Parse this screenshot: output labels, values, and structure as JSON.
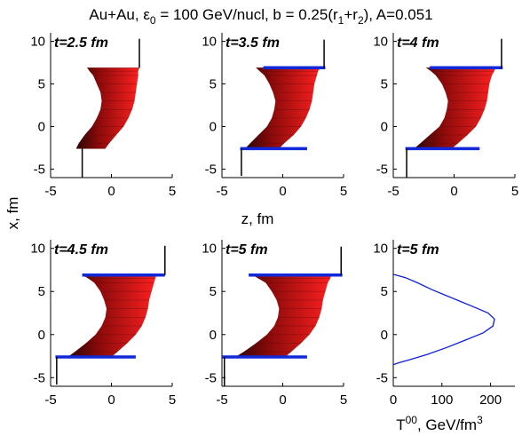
{
  "title": "Au+Au, ε0 = 100 GeV/nucl, b = 0.25(r1+r2), A=0.051",
  "title_parts": {
    "pre": "Au+Au, ε",
    "sub1": "0",
    "mid": " = 100 GeV/nucl, b = 0.25(r",
    "sub2": "1",
    "plus": "+r",
    "sub3": "2",
    "post": "), A=0.051"
  },
  "xlabel_shared": "z, fm",
  "ylabel_shared": "x, fm",
  "xlabel_t00": {
    "main": "T",
    "sup1": "00",
    "unit": ", GeV/fm",
    "sup2": "3"
  },
  "chart_data": [
    {
      "type": "area",
      "title": "t=2.5 fm",
      "xlim": [
        -5,
        5
      ],
      "ylim": [
        -6,
        11
      ],
      "xticks": [
        -5,
        0,
        5
      ],
      "yticks": [
        -5,
        0,
        5,
        10
      ],
      "band_x": [
        -2.9,
        -2.7,
        -2.2,
        -1.6,
        -1.2,
        -0.9,
        -0.8,
        -0.9,
        -1.2,
        -1.5,
        -1.8,
        -2.0
      ],
      "band_x_right": [
        -0.5,
        -0.2,
        0.4,
        1.0,
        1.4,
        1.7,
        1.9,
        2.0,
        2.1,
        2.2,
        2.2,
        2.3
      ],
      "band_y": [
        -2.6,
        -2.0,
        -1.0,
        0.0,
        1.0,
        2.0,
        3.0,
        4.0,
        5.0,
        6.0,
        6.5,
        6.9
      ],
      "caps": [],
      "ticks_lines": [
        {
          "x": -2.4,
          "y1": -6.0,
          "y2": -2.6
        },
        {
          "x": 2.3,
          "y1": 6.9,
          "y2": 10.3
        }
      ]
    },
    {
      "type": "area",
      "title": "t=3.5 fm",
      "xlim": [
        -5,
        5
      ],
      "ylim": [
        -6,
        11
      ],
      "xticks": [
        -5,
        0,
        5
      ],
      "yticks": [
        -5,
        0,
        5,
        10
      ],
      "band_x": [
        -3.1,
        -2.7,
        -2.0,
        -1.3,
        -0.9,
        -0.7,
        -0.6,
        -0.8,
        -1.1,
        -1.5,
        -1.9,
        -2.2
      ],
      "band_x_right": [
        -0.3,
        0.1,
        0.9,
        1.5,
        1.9,
        2.2,
        2.4,
        2.5,
        2.6,
        2.8,
        2.9,
        3.1
      ],
      "band_y": [
        -2.6,
        -2.0,
        -1.0,
        0.0,
        1.0,
        2.0,
        3.0,
        4.0,
        5.0,
        6.0,
        6.5,
        6.9
      ],
      "caps": [
        {
          "x1": -3.5,
          "x2": 2.0,
          "y": -2.6
        },
        {
          "x1": -1.6,
          "x2": 3.5,
          "y": 6.9
        }
      ],
      "ticks_lines": [
        {
          "x": -3.4,
          "y1": -5.8,
          "y2": -2.6
        },
        {
          "x": 3.4,
          "y1": 6.9,
          "y2": 10.2
        }
      ]
    },
    {
      "type": "area",
      "title": "t=4 fm",
      "xlim": [
        -5,
        5
      ],
      "ylim": [
        -6,
        11
      ],
      "xticks": [
        -5,
        0,
        5
      ],
      "yticks": [
        -5,
        0,
        5,
        10
      ],
      "band_x": [
        -3.3,
        -2.8,
        -2.0,
        -1.2,
        -0.8,
        -0.6,
        -0.5,
        -0.7,
        -1.0,
        -1.5,
        -1.9,
        -2.3
      ],
      "band_x_right": [
        -0.2,
        0.3,
        1.1,
        1.8,
        2.2,
        2.5,
        2.7,
        2.8,
        2.9,
        3.1,
        3.3,
        3.4
      ],
      "band_y": [
        -2.6,
        -2.0,
        -1.0,
        0.0,
        1.0,
        2.0,
        3.0,
        4.0,
        5.0,
        6.0,
        6.5,
        6.9
      ],
      "caps": [
        {
          "x1": -4.0,
          "x2": 2.1,
          "y": -2.6
        },
        {
          "x1": -2.0,
          "x2": 4.0,
          "y": 6.9
        }
      ],
      "ticks_lines": [
        {
          "x": -3.9,
          "y1": -6.0,
          "y2": -2.6
        },
        {
          "x": 3.9,
          "y1": 6.9,
          "y2": 10.3
        }
      ]
    },
    {
      "type": "area",
      "title": "t=4.5 fm",
      "xlim": [
        -5,
        5
      ],
      "ylim": [
        -6,
        11
      ],
      "xticks": [
        -5,
        0,
        5
      ],
      "yticks": [
        -5,
        0,
        5,
        10
      ],
      "band_x": [
        -3.6,
        -3.0,
        -2.1,
        -1.3,
        -0.8,
        -0.5,
        -0.4,
        -0.6,
        -0.9,
        -1.4,
        -1.9,
        -2.4
      ],
      "band_x_right": [
        0.0,
        0.5,
        1.3,
        2.0,
        2.5,
        2.8,
        3.0,
        3.1,
        3.3,
        3.5,
        3.6,
        3.7
      ],
      "band_y": [
        -2.6,
        -2.0,
        -1.0,
        0.0,
        1.0,
        2.0,
        3.0,
        4.0,
        5.0,
        6.0,
        6.5,
        6.9
      ],
      "caps": [
        {
          "x1": -4.6,
          "x2": 2.0,
          "y": -2.6
        },
        {
          "x1": -2.4,
          "x2": 4.4,
          "y": 6.9
        }
      ],
      "ticks_lines": [
        {
          "x": -4.5,
          "y1": -5.8,
          "y2": -2.6
        },
        {
          "x": 4.4,
          "y1": 6.9,
          "y2": 10.3
        }
      ]
    },
    {
      "type": "area",
      "title": "t=5 fm",
      "xlim": [
        -5,
        5
      ],
      "ylim": [
        -6,
        11
      ],
      "xticks": [
        -5,
        0,
        5
      ],
      "yticks": [
        -5,
        0,
        5,
        10
      ],
      "band_x": [
        -3.9,
        -3.2,
        -2.2,
        -1.3,
        -0.7,
        -0.4,
        -0.3,
        -0.5,
        -0.9,
        -1.4,
        -2.0,
        -2.5
      ],
      "band_x_right": [
        0.2,
        0.7,
        1.5,
        2.2,
        2.7,
        3.0,
        3.2,
        3.3,
        3.5,
        3.7,
        3.9,
        4.0
      ],
      "band_y": [
        -2.6,
        -2.0,
        -1.0,
        0.0,
        1.0,
        2.0,
        3.0,
        4.0,
        5.0,
        6.0,
        6.5,
        6.9
      ],
      "caps": [
        {
          "x1": -5.0,
          "x2": 2.0,
          "y": -2.6
        },
        {
          "x1": -2.8,
          "x2": 4.9,
          "y": 6.9
        }
      ],
      "ticks_lines": [
        {
          "x": -4.8,
          "y1": -6.0,
          "y2": -2.6
        },
        {
          "x": 4.8,
          "y1": 6.9,
          "y2": 10.2
        }
      ]
    },
    {
      "type": "line",
      "title": "t=5 fm",
      "xlim": [
        0,
        250
      ],
      "ylim": [
        -6,
        11
      ],
      "xticks": [
        0,
        100,
        200
      ],
      "yticks": [
        -5,
        0,
        5,
        10
      ],
      "x": [
        0,
        25,
        50,
        80,
        110,
        140,
        170,
        195,
        208,
        205,
        185,
        150,
        110,
        70,
        35,
        10,
        0
      ],
      "y": [
        7.0,
        6.6,
        6.0,
        5.2,
        4.5,
        3.8,
        3.1,
        2.5,
        1.8,
        1.0,
        0.2,
        -0.6,
        -1.5,
        -2.3,
        -2.9,
        -3.3,
        -3.5
      ],
      "series_color": "#0b1fd8"
    }
  ],
  "colors": {
    "band_dark": "#2a0505",
    "band_mid": "#8a0a0a",
    "band_light": "#ff2020",
    "cap": "#1028d8",
    "axis": "#000000"
  }
}
